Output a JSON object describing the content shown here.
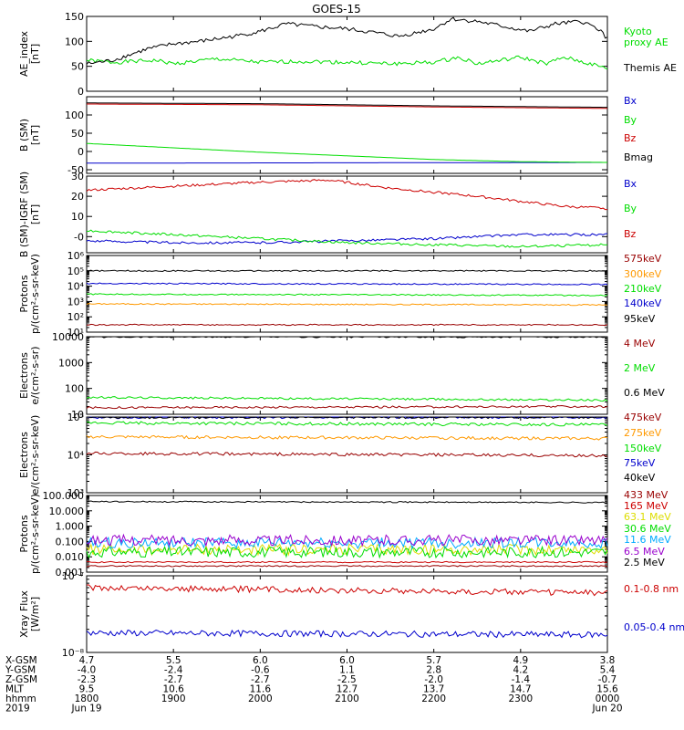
{
  "title": "GOES-15",
  "colors": {
    "black": "#000000",
    "green": "#00dd00",
    "red": "#cc0000",
    "blue": "#0000cc",
    "orange": "#ff9900",
    "dkred": "#990000",
    "yellow": "#dddd00",
    "cyan": "#00aaff",
    "purple": "#770077",
    "violet": "#9900cc"
  },
  "x_axis": {
    "range": [
      "1800",
      "0000"
    ],
    "tick_labels": [
      "1800",
      "1900",
      "2000",
      "2100",
      "2200",
      "2300",
      "0000"
    ],
    "ephemeris": {
      "row_labels": [
        "X-GSM",
        "Y-GSM",
        "Z-GSM",
        "MLT",
        "hhmm",
        "2019"
      ],
      "columns": [
        [
          "4.7",
          "-4.0",
          "-2.3",
          "9.5",
          "1800",
          "Jun 19"
        ],
        [
          "5.5",
          "-2.4",
          "-2.7",
          "10.6",
          "1900",
          ""
        ],
        [
          "6.0",
          "-0.6",
          "-2.7",
          "11.6",
          "2000",
          ""
        ],
        [
          "6.0",
          "1.1",
          "-2.5",
          "12.7",
          "2100",
          ""
        ],
        [
          "5.7",
          "2.8",
          "-2.0",
          "13.7",
          "2200",
          ""
        ],
        [
          "4.9",
          "4.2",
          "-1.4",
          "14.7",
          "2300",
          ""
        ],
        [
          "3.8",
          "5.4",
          "-0.7",
          "15.6",
          "0000",
          "Jun 20"
        ]
      ]
    }
  },
  "chart_data": [
    {
      "type": "line",
      "ylabel": [
        "AE_index",
        "[nT]"
      ],
      "ylim": [
        0,
        150
      ],
      "log": false,
      "ticks": [
        "0",
        "50",
        "100",
        "150"
      ],
      "tick_values": [
        0,
        50,
        100,
        150
      ],
      "series": [
        {
          "name": "Kyoto proxy AE",
          "name_lines": [
            "Kyoto",
            "proxy AE"
          ],
          "color": "#00dd00",
          "times": [
            18,
            18.3,
            18.8,
            19.0,
            19.5,
            20.0,
            20.5,
            21.0,
            21.5,
            22.0,
            22.3,
            22.5,
            23.0,
            23.3,
            23.5,
            23.8,
            24
          ],
          "values": [
            62,
            58,
            62,
            55,
            65,
            58,
            60,
            58,
            55,
            58,
            68,
            55,
            68,
            55,
            68,
            55,
            45
          ]
        },
        {
          "name": "Themis AE",
          "color": "#000000",
          "times": [
            18,
            18.3,
            18.7,
            19.0,
            19.3,
            19.7,
            20.0,
            20.3,
            20.6,
            21.0,
            21.3,
            21.6,
            22.0,
            22.2,
            22.5,
            22.8,
            23.1,
            23.4,
            23.7,
            23.9,
            24
          ],
          "values": [
            55,
            62,
            85,
            95,
            100,
            110,
            120,
            135,
            130,
            125,
            118,
            110,
            125,
            145,
            140,
            130,
            120,
            135,
            140,
            125,
            105
          ]
        }
      ]
    },
    {
      "type": "line",
      "ylabel": [
        "B (SM)",
        "[nT]"
      ],
      "ylim": [
        -60,
        150
      ],
      "log": false,
      "ticks": [
        "-50",
        "0",
        "50",
        "100"
      ],
      "tick_values": [
        -50,
        0,
        50,
        100
      ],
      "series": [
        {
          "name": "Bx",
          "color": "#0000cc",
          "times": [
            18,
            24
          ],
          "values": [
            -32,
            -30
          ]
        },
        {
          "name": "By",
          "color": "#00dd00",
          "times": [
            18,
            19,
            20,
            21,
            22,
            23,
            24
          ],
          "values": [
            22,
            10,
            -2,
            -12,
            -22,
            -28,
            -30
          ]
        },
        {
          "name": "Bz",
          "color": "#cc0000",
          "times": [
            18,
            20,
            22,
            24
          ],
          "values": [
            130,
            128,
            122,
            118
          ]
        },
        {
          "name": "Bmag",
          "color": "#000000",
          "times": [
            18,
            20,
            22,
            24
          ],
          "values": [
            133,
            131,
            125,
            121
          ]
        }
      ]
    },
    {
      "type": "line",
      "ylabel": [
        "B (SM)-IGRF (SM)",
        "[nT]"
      ],
      "ylim": [
        -8,
        30
      ],
      "log": false,
      "ticks": [
        "-0",
        "10",
        "20",
        "30"
      ],
      "tick_values": [
        0,
        10,
        20,
        30
      ],
      "series": [
        {
          "name": "Bx",
          "color": "#0000cc",
          "times": [
            18,
            19,
            20,
            21,
            22,
            23,
            24
          ],
          "values": [
            -2,
            -3,
            -3,
            -2,
            -1,
            1,
            1
          ]
        },
        {
          "name": "By",
          "color": "#00dd00",
          "times": [
            18,
            19,
            20,
            21,
            22,
            23,
            24
          ],
          "values": [
            3,
            1,
            -1,
            -3,
            -4,
            -5,
            -4
          ]
        },
        {
          "name": "Bz",
          "color": "#cc0000",
          "times": [
            18,
            19,
            20,
            20.8,
            21.5,
            22.5,
            23.5,
            24
          ],
          "values": [
            23,
            25,
            27,
            28,
            24,
            20,
            15,
            14
          ]
        }
      ]
    },
    {
      "type": "line",
      "ylabel": [
        "Protons",
        "p/(cm²-s-sr-keV)"
      ],
      "ylim": [
        10,
        1000000
      ],
      "log": true,
      "ticks": [
        "10¹",
        "10²",
        "10³",
        "10⁴",
        "10⁵",
        "10⁶"
      ],
      "tick_values": [
        10,
        100,
        1000,
        10000,
        100000,
        1000000
      ],
      "series": [
        {
          "name": "575keV",
          "color": "#990000",
          "times": [
            18,
            24
          ],
          "values": [
            30,
            30
          ]
        },
        {
          "name": "300keV",
          "color": "#ff9900",
          "times": [
            18,
            24
          ],
          "values": [
            700,
            600
          ]
        },
        {
          "name": "210keV",
          "color": "#00dd00",
          "times": [
            18,
            24
          ],
          "values": [
            3000,
            2500
          ]
        },
        {
          "name": "140keV",
          "color": "#0000cc",
          "times": [
            18,
            24
          ],
          "values": [
            15000,
            13000
          ]
        },
        {
          "name": "95keV",
          "color": "#000000",
          "times": [
            18,
            24
          ],
          "values": [
            100000,
            100000
          ]
        }
      ]
    },
    {
      "type": "line",
      "ylabel": [
        "Electrons",
        "e/(cm²-s-sr)"
      ],
      "ylim": [
        10,
        10000
      ],
      "log": true,
      "ticks": [
        "10",
        "100",
        "1000",
        "10000"
      ],
      "tick_values": [
        10,
        100,
        1000,
        10000
      ],
      "series": [
        {
          "name": "4 MeV",
          "color": "#990000",
          "times": [
            18,
            24
          ],
          "values": [
            18,
            20
          ]
        },
        {
          "name": "2 MeV",
          "color": "#00dd00",
          "times": [
            18,
            24
          ],
          "values": [
            45,
            35
          ]
        },
        {
          "name": "0.6 MeV",
          "color": "#000000",
          "times": [
            18,
            24
          ],
          "values": [
            10000,
            10000
          ]
        }
      ]
    },
    {
      "type": "line",
      "ylabel": [
        "Electrons",
        "e/(cm²-s-sr-keV)"
      ],
      "ylim": [
        1000,
        100000
      ],
      "log": true,
      "ticks": [
        "10³",
        "10⁴",
        "10⁵"
      ],
      "tick_values": [
        1000,
        10000,
        100000
      ],
      "series": [
        {
          "name": "475keV",
          "color": "#990000",
          "times": [
            18,
            24
          ],
          "values": [
            11000,
            9500
          ]
        },
        {
          "name": "275keV",
          "color": "#ff9900",
          "times": [
            18,
            24
          ],
          "values": [
            30000,
            27000
          ]
        },
        {
          "name": "150keV",
          "color": "#00dd00",
          "times": [
            18,
            24
          ],
          "values": [
            70000,
            62000
          ]
        },
        {
          "name": "75keV",
          "color": "#0000cc",
          "times": [
            18,
            24
          ],
          "values": [
            100000,
            100000
          ]
        },
        {
          "name": "40keV",
          "color": "#000000",
          "times": [
            18,
            24
          ],
          "values": [
            100000,
            100000
          ]
        }
      ]
    },
    {
      "type": "line",
      "ylabel": [
        "Protons",
        "p/(cm²-s-sr-keV)"
      ],
      "ylim": [
        0.001,
        100
      ],
      "log": true,
      "ticks": [
        "0.001",
        "0.010",
        "0.100",
        "1.000",
        "10.000",
        "100.000"
      ],
      "tick_values": [
        0.001,
        0.01,
        0.1,
        1,
        10,
        100
      ],
      "series": [
        {
          "name": "433 MeV",
          "color": "#990000",
          "times": [
            18,
            24
          ],
          "values": [
            0.0025,
            0.0025
          ]
        },
        {
          "name": "165 MeV",
          "color": "#cc0000",
          "times": [
            18,
            24
          ],
          "values": [
            0.0045,
            0.0045
          ]
        },
        {
          "name": "63.1 MeV",
          "color": "#dddd00",
          "times": [
            18,
            24
          ],
          "values": [
            0.03,
            0.03
          ]
        },
        {
          "name": "30.6 MeV",
          "color": "#00dd00",
          "times": [
            18,
            24
          ],
          "values": [
            0.02,
            0.02
          ]
        },
        {
          "name": "11.6 MeV",
          "color": "#00aaff",
          "times": [
            18,
            24
          ],
          "values": [
            0.08,
            0.08
          ]
        },
        {
          "name": "6.5 MeV",
          "color": "#9900cc",
          "times": [
            18,
            24
          ],
          "values": [
            0.12,
            0.12
          ]
        },
        {
          "name": "2.5 MeV",
          "color": "#000000",
          "times": [
            18,
            24
          ],
          "values": [
            40,
            35
          ]
        }
      ]
    },
    {
      "type": "line",
      "ylabel": [
        "Xray Flux",
        "[W/m²]"
      ],
      "ylim": [
        1e-08,
        1e-07
      ],
      "log": true,
      "ticks": [
        "10⁻⁸",
        "10⁻⁷"
      ],
      "tick_values": [
        1e-08,
        1e-07
      ],
      "series": [
        {
          "name": "0.1-0.8 nm",
          "color": "#cc0000",
          "times": [
            18,
            24
          ],
          "values": [
            7e-08,
            6e-08
          ]
        },
        {
          "name": "0.05-0.4 nm",
          "color": "#0000cc",
          "times": [
            18,
            24
          ],
          "values": [
            1.8e-08,
            1.7e-08
          ]
        }
      ]
    }
  ]
}
